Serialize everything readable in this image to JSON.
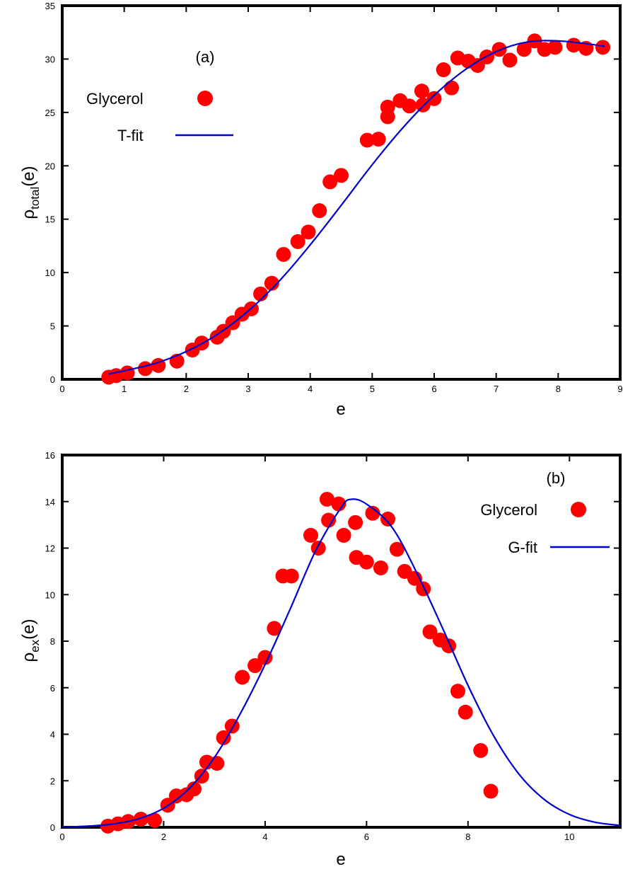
{
  "chart_data": [
    {
      "type": "scatter",
      "panel_label": "(a)",
      "xlabel": "e",
      "ylabel_main": "ρ",
      "ylabel_sub": "total",
      "ylabel_end": "(e)",
      "xlim": [
        0,
        9
      ],
      "ylim": [
        0,
        35
      ],
      "xticks": [
        "0",
        "1",
        "2",
        "3",
        "4",
        "5",
        "6",
        "7",
        "8",
        "9"
      ],
      "yticks": [
        "0",
        "5",
        "10",
        "15",
        "20",
        "25",
        "30",
        "35"
      ],
      "grid": false,
      "legend_position": "upper-left",
      "marker_color": "#ff0000",
      "fit_color": "#0000cc",
      "series": [
        {
          "name": "Glycerol",
          "kind": "points",
          "x": [
            0.75,
            0.87,
            1.05,
            1.34,
            1.55,
            1.85,
            2.1,
            2.25,
            2.5,
            2.6,
            2.75,
            2.9,
            3.05,
            3.2,
            3.38,
            3.57,
            3.8,
            3.97,
            4.15,
            4.32,
            4.5,
            4.92,
            5.1,
            5.25,
            5.25,
            5.45,
            5.6,
            5.8,
            5.82,
            6.0,
            6.15,
            6.28,
            6.38,
            6.55,
            6.7,
            6.85,
            7.05,
            7.22,
            7.45,
            7.62,
            7.78,
            7.95,
            8.25,
            8.45,
            8.72
          ],
          "y": [
            0.2,
            0.35,
            0.6,
            1.0,
            1.3,
            1.7,
            2.75,
            3.4,
            3.95,
            4.5,
            5.3,
            6.1,
            6.6,
            8.0,
            9.0,
            11.7,
            12.9,
            13.8,
            15.8,
            18.5,
            19.1,
            22.4,
            22.5,
            24.6,
            25.5,
            26.1,
            25.6,
            27.0,
            25.7,
            26.3,
            29.0,
            27.3,
            30.1,
            29.8,
            29.4,
            30.2,
            30.9,
            29.9,
            30.9,
            31.7,
            30.9,
            31.1,
            31.3,
            31.0,
            31.1
          ]
        },
        {
          "name": "T-fit",
          "kind": "line",
          "x": [
            0.75,
            1.0,
            1.5,
            2.0,
            2.5,
            3.0,
            3.5,
            4.0,
            4.5,
            5.0,
            5.5,
            6.0,
            6.5,
            7.0,
            7.5,
            8.0,
            8.5,
            8.75
          ],
          "y": [
            0.5,
            0.8,
            1.5,
            2.6,
            4.2,
            6.4,
            9.2,
            12.6,
            16.3,
            20.1,
            23.6,
            26.6,
            29.0,
            30.7,
            31.6,
            31.7,
            31.4,
            31.2
          ]
        }
      ]
    },
    {
      "type": "scatter",
      "panel_label": "(b)",
      "xlabel": "e",
      "ylabel_main": "ρ",
      "ylabel_sub": "ex",
      "ylabel_end": "(e)",
      "xlim": [
        0,
        11
      ],
      "ylim": [
        0,
        16
      ],
      "xticks": [
        "0",
        "2",
        "4",
        "6",
        "8",
        "10"
      ],
      "yticks": [
        "0",
        "2",
        "4",
        "6",
        "8",
        "10",
        "12",
        "14",
        "16"
      ],
      "grid": false,
      "legend_position": "upper-right",
      "marker_color": "#ff0000",
      "fit_color": "#0000cc",
      "series": [
        {
          "name": "Glycerol",
          "kind": "points",
          "x": [
            0.9,
            1.1,
            1.3,
            1.55,
            1.82,
            2.08,
            2.25,
            2.45,
            2.6,
            2.75,
            2.85,
            3.05,
            3.18,
            3.35,
            3.55,
            3.8,
            4.0,
            4.18,
            4.35,
            4.52,
            4.9,
            5.05,
            5.22,
            5.25,
            5.45,
            5.55,
            5.78,
            5.8,
            6.0,
            6.12,
            6.28,
            6.42,
            6.6,
            6.75,
            6.95,
            7.12,
            7.25,
            7.45,
            7.62,
            7.8,
            7.95,
            8.25,
            8.45
          ],
          "y": [
            0.05,
            0.15,
            0.25,
            0.35,
            0.3,
            0.95,
            1.35,
            1.4,
            1.65,
            2.2,
            2.8,
            2.75,
            3.85,
            4.35,
            6.45,
            6.95,
            7.3,
            8.55,
            10.8,
            10.8,
            12.55,
            12.0,
            14.1,
            13.2,
            13.9,
            12.55,
            13.1,
            11.6,
            11.4,
            13.5,
            11.15,
            13.25,
            11.95,
            11.0,
            10.7,
            10.25,
            8.4,
            8.05,
            7.8,
            5.85,
            4.95,
            3.3,
            1.55
          ]
        },
        {
          "name": "G-fit",
          "kind": "line",
          "x": [
            0,
            0.5,
            1.0,
            1.5,
            2.0,
            2.5,
            3.0,
            3.5,
            4.0,
            4.5,
            5.0,
            5.5,
            5.7,
            6.0,
            6.5,
            7.0,
            7.5,
            8.0,
            8.5,
            9.0,
            9.5,
            10.0,
            10.5,
            11.0
          ],
          "y": [
            0.0,
            0.05,
            0.14,
            0.36,
            0.82,
            1.66,
            3.0,
            4.84,
            7.0,
            9.41,
            11.9,
            13.75,
            14.1,
            13.89,
            12.9,
            10.9,
            8.55,
            6.1,
            3.95,
            2.3,
            1.2,
            0.55,
            0.22,
            0.08
          ]
        }
      ]
    }
  ]
}
